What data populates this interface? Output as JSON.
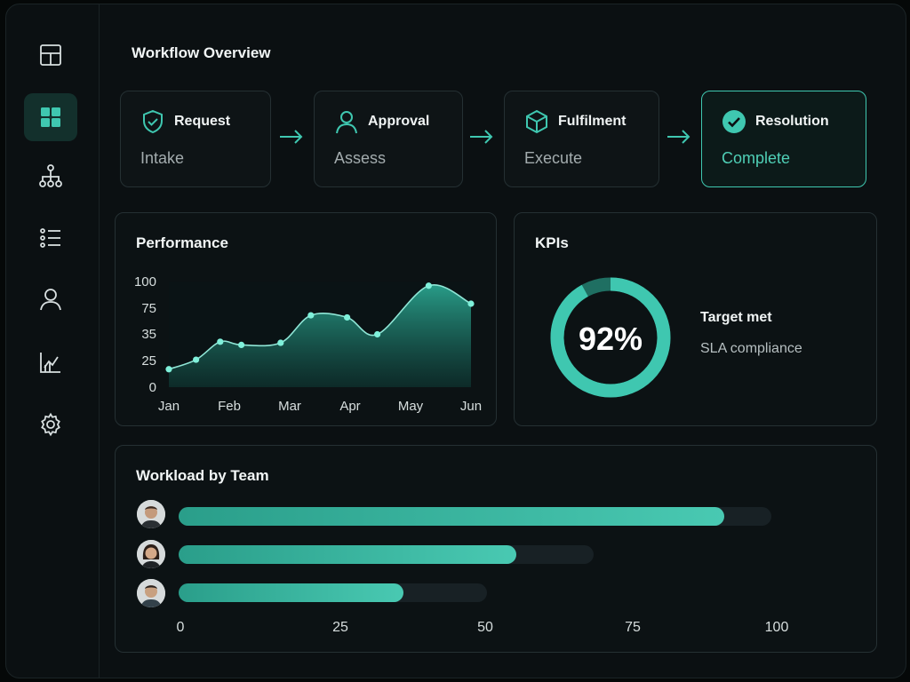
{
  "page_title": "Workflow Overview",
  "sidebar": {
    "items": [
      {
        "icon": "layout-icon",
        "active": false
      },
      {
        "icon": "dashboard-grid-icon",
        "active": true
      },
      {
        "icon": "org-chart-icon",
        "active": false
      },
      {
        "icon": "list-icon",
        "active": false
      },
      {
        "icon": "user-icon",
        "active": false
      },
      {
        "icon": "analytics-icon",
        "active": false
      },
      {
        "icon": "settings-gear-icon",
        "active": false
      }
    ]
  },
  "workflow": {
    "steps": [
      {
        "name": "Request",
        "sub": "Intake",
        "icon": "shield-check-icon"
      },
      {
        "name": "Approval",
        "sub": "Assess",
        "icon": "user-icon"
      },
      {
        "name": "Fulfilment",
        "sub": "Execute",
        "icon": "box-icon"
      },
      {
        "name": "Resolution",
        "sub": "Complete",
        "icon": "check-circle-icon"
      }
    ],
    "arrow_icon": "arrow-right-icon"
  },
  "performance": {
    "title": "Performance",
    "chart_data": {
      "type": "area",
      "x": [
        "Jan",
        "Feb",
        "Mar",
        "Apr",
        "May",
        "Jun"
      ],
      "y_ticks": [
        "100",
        "75",
        "35",
        "25",
        "0"
      ],
      "points": [
        {
          "x": 0.0,
          "y": 17
        },
        {
          "x": 0.45,
          "y": 26
        },
        {
          "x": 0.85,
          "y": 43
        },
        {
          "x": 1.2,
          "y": 40
        },
        {
          "x": 1.85,
          "y": 42
        },
        {
          "x": 2.35,
          "y": 68
        },
        {
          "x": 2.95,
          "y": 66
        },
        {
          "x": 3.45,
          "y": 50
        },
        {
          "x": 4.3,
          "y": 96
        },
        {
          "x": 5.0,
          "y": 79
        }
      ],
      "accent": "#3fc7b0"
    }
  },
  "kpis": {
    "title": "KPIs",
    "percent_label": "92%",
    "percent": 92,
    "target_label": "Target met",
    "target_sub": "SLA compliance"
  },
  "workload": {
    "title": "Workload by Team",
    "chart_data": {
      "type": "bar",
      "orientation": "horizontal",
      "x_ticks": [
        "0",
        "25",
        "50",
        "75",
        "100"
      ],
      "rows": [
        {
          "avatar": "man-avatar",
          "value": 92,
          "track": 100
        },
        {
          "avatar": "woman-avatar",
          "value": 57,
          "track": 70
        },
        {
          "avatar": "man-avatar",
          "value": 38,
          "track": 52
        }
      ]
    }
  },
  "colors": {
    "accent": "#3fc7b0",
    "background": "#0b1012"
  }
}
